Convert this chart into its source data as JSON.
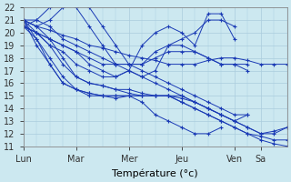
{
  "xlabel": "Température (°c)",
  "ylim": [
    11,
    22
  ],
  "xlim": [
    0,
    120
  ],
  "yticks": [
    11,
    12,
    13,
    14,
    15,
    16,
    17,
    18,
    19,
    20,
    21,
    22
  ],
  "xtick_positions": [
    0,
    24,
    48,
    72,
    96,
    108
  ],
  "xtick_labels": [
    "Lun",
    "Mar",
    "Mer",
    "Jeu",
    "Ven",
    "Sa"
  ],
  "background_color": "#cce8f0",
  "grid_color": "#aaccdd",
  "line_color": "#1a3ab5",
  "marker": "+",
  "series": [
    {
      "x": [
        0,
        6,
        12,
        18,
        24,
        30,
        36,
        42,
        48,
        54,
        60,
        66,
        72,
        78,
        84,
        90,
        96,
        102,
        108,
        114,
        120
      ],
      "y": [
        21.0,
        20.5,
        20.2,
        19.8,
        19.5,
        19.0,
        18.8,
        18.5,
        18.2,
        18.0,
        17.8,
        17.5,
        17.5,
        17.5,
        17.8,
        18.0,
        18.0,
        17.8,
        17.5,
        17.5,
        17.5
      ]
    },
    {
      "x": [
        0,
        6,
        12,
        18,
        24,
        30,
        36,
        42,
        48,
        54,
        60,
        66,
        72,
        78,
        84,
        90,
        96,
        102,
        108,
        114,
        120
      ],
      "y": [
        21.0,
        20.0,
        19.0,
        17.5,
        16.5,
        16.0,
        15.8,
        15.5,
        15.2,
        15.0,
        15.0,
        15.0,
        14.8,
        14.5,
        14.0,
        13.5,
        13.0,
        12.5,
        12.0,
        12.2,
        12.5
      ]
    },
    {
      "x": [
        0,
        6,
        12,
        18,
        24,
        30,
        36,
        42,
        48,
        54,
        60,
        66,
        72,
        78,
        84,
        90,
        96,
        102,
        108,
        114,
        120
      ],
      "y": [
        21.0,
        19.5,
        18.0,
        16.5,
        15.5,
        15.2,
        15.0,
        14.8,
        15.0,
        15.0,
        15.0,
        15.0,
        14.5,
        14.0,
        13.5,
        13.0,
        12.5,
        12.0,
        11.5,
        11.2,
        11.0
      ]
    },
    {
      "x": [
        0,
        6,
        12,
        18,
        24,
        30,
        36,
        42,
        48,
        54,
        60,
        66,
        72,
        78,
        84,
        90,
        96,
        102,
        108,
        114,
        120
      ],
      "y": [
        21.0,
        19.0,
        17.5,
        16.0,
        15.5,
        15.2,
        15.0,
        15.0,
        15.0,
        15.0,
        15.0,
        15.0,
        14.5,
        14.0,
        13.5,
        13.0,
        12.5,
        12.0,
        11.8,
        11.5,
        11.5
      ]
    },
    {
      "x": [
        0,
        6,
        12,
        18,
        24,
        30,
        36,
        42,
        48,
        54,
        60,
        66,
        72,
        78,
        84,
        90,
        96,
        102,
        108,
        114,
        120
      ],
      "y": [
        21.0,
        20.5,
        19.5,
        18.0,
        16.5,
        16.0,
        15.8,
        15.5,
        15.5,
        15.2,
        15.0,
        15.0,
        15.0,
        14.5,
        14.0,
        13.5,
        13.0,
        12.5,
        12.0,
        12.0,
        12.5
      ]
    },
    {
      "x": [
        0,
        6,
        12,
        18,
        24,
        30,
        36,
        42,
        48,
        54,
        60,
        66,
        72,
        78,
        84,
        90,
        96,
        102
      ],
      "y": [
        21.0,
        20.5,
        21.0,
        22.0,
        22.5,
        22.0,
        20.5,
        19.0,
        17.5,
        17.0,
        16.5,
        16.0,
        15.5,
        15.0,
        14.5,
        14.0,
        13.5,
        13.5
      ]
    },
    {
      "x": [
        0,
        6,
        12,
        18,
        24,
        30,
        36,
        42,
        48,
        54,
        60,
        66,
        72,
        78,
        84,
        90,
        96,
        102
      ],
      "y": [
        21.0,
        21.0,
        22.0,
        22.5,
        22.0,
        20.5,
        19.0,
        17.5,
        17.0,
        16.5,
        16.0,
        15.5,
        15.0,
        14.5,
        14.0,
        13.5,
        13.0,
        13.5
      ]
    },
    {
      "x": [
        0,
        6,
        12,
        18,
        24,
        30,
        36,
        42,
        48,
        54,
        60,
        66,
        72,
        78,
        84,
        90,
        96,
        102
      ],
      "y": [
        20.5,
        21.0,
        20.5,
        19.5,
        19.0,
        18.5,
        18.0,
        17.5,
        17.5,
        17.5,
        18.5,
        19.0,
        19.0,
        18.5,
        18.0,
        17.5,
        17.5,
        17.0
      ]
    },
    {
      "x": [
        0,
        6,
        12,
        18,
        24,
        30,
        36,
        42,
        48,
        54,
        60,
        66,
        72,
        78,
        84,
        90,
        96,
        102
      ],
      "y": [
        20.5,
        20.0,
        19.5,
        19.0,
        18.5,
        18.0,
        17.5,
        17.5,
        17.5,
        17.5,
        18.0,
        18.5,
        18.5,
        18.5,
        18.0,
        17.5,
        17.5,
        17.5
      ]
    },
    {
      "x": [
        0,
        6,
        12,
        18,
        24,
        30,
        36,
        42,
        48,
        54,
        60,
        66,
        72,
        78,
        84,
        90,
        96
      ],
      "y": [
        20.5,
        20.0,
        19.5,
        19.0,
        18.5,
        17.5,
        17.0,
        16.5,
        17.0,
        16.5,
        17.0,
        19.0,
        19.5,
        20.0,
        21.0,
        21.0,
        20.5
      ]
    },
    {
      "x": [
        0,
        6,
        12,
        18,
        24,
        30,
        36,
        42,
        48,
        54,
        60,
        66,
        72,
        78,
        84,
        90,
        96
      ],
      "y": [
        20.5,
        20.0,
        19.0,
        18.5,
        17.5,
        17.0,
        16.5,
        16.5,
        17.0,
        19.0,
        20.0,
        20.5,
        20.0,
        19.0,
        21.5,
        21.5,
        19.5
      ]
    },
    {
      "x": [
        0,
        6,
        12,
        18,
        24,
        30,
        36,
        42,
        48,
        54,
        60,
        66,
        72,
        78,
        84,
        90
      ],
      "y": [
        20.5,
        19.5,
        17.5,
        16.0,
        15.5,
        15.0,
        15.0,
        15.0,
        15.0,
        14.5,
        13.5,
        13.0,
        12.5,
        12.0,
        12.0,
        12.5
      ]
    }
  ]
}
